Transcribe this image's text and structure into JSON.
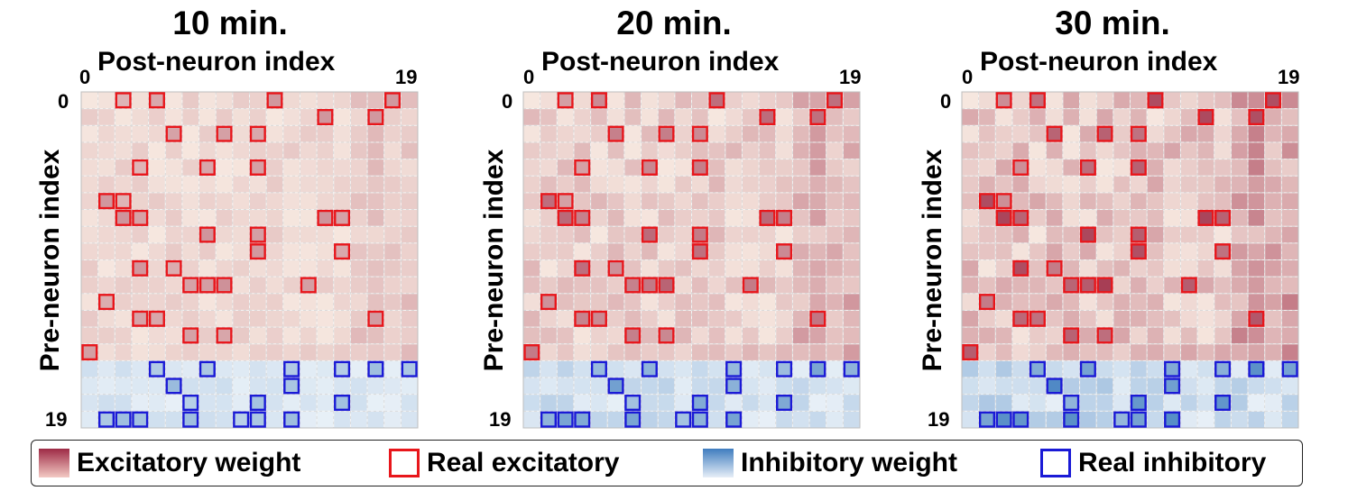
{
  "chart_data": [
    {
      "type": "heatmap",
      "title": "10 min.",
      "xlabel": "Post-neuron index",
      "ylabel": "Pre-neuron index",
      "x_ticks": [
        "0",
        "19"
      ],
      "y_ticks": [
        "0",
        "19"
      ],
      "n": 20,
      "excitatory_rows": 16,
      "scale": 0.45,
      "real_excitatory": [
        [
          0,
          2
        ],
        [
          0,
          4
        ],
        [
          0,
          11
        ],
        [
          0,
          18
        ],
        [
          1,
          14
        ],
        [
          1,
          17
        ],
        [
          2,
          5
        ],
        [
          2,
          8
        ],
        [
          2,
          10
        ],
        [
          4,
          3
        ],
        [
          4,
          7
        ],
        [
          4,
          10
        ],
        [
          6,
          1
        ],
        [
          6,
          2
        ],
        [
          7,
          2
        ],
        [
          7,
          3
        ],
        [
          7,
          14
        ],
        [
          7,
          15
        ],
        [
          8,
          7
        ],
        [
          8,
          10
        ],
        [
          9,
          10
        ],
        [
          9,
          15
        ],
        [
          10,
          3
        ],
        [
          10,
          5
        ],
        [
          11,
          6
        ],
        [
          11,
          7
        ],
        [
          11,
          8
        ],
        [
          11,
          13
        ],
        [
          12,
          1
        ],
        [
          13,
          3
        ],
        [
          13,
          4
        ],
        [
          13,
          17
        ],
        [
          14,
          6
        ],
        [
          14,
          8
        ],
        [
          15,
          0
        ]
      ],
      "real_inhibitory": [
        [
          16,
          4
        ],
        [
          16,
          7
        ],
        [
          16,
          12
        ],
        [
          16,
          15
        ],
        [
          16,
          17
        ],
        [
          16,
          19
        ],
        [
          17,
          5
        ],
        [
          17,
          12
        ],
        [
          18,
          6
        ],
        [
          18,
          10
        ],
        [
          18,
          15
        ],
        [
          19,
          1
        ],
        [
          19,
          2
        ],
        [
          19,
          3
        ],
        [
          19,
          6
        ],
        [
          19,
          9
        ],
        [
          19,
          10
        ],
        [
          19,
          12
        ]
      ]
    },
    {
      "type": "heatmap",
      "title": "20 min.",
      "xlabel": "Post-neuron index",
      "ylabel": "Pre-neuron index",
      "x_ticks": [
        "0",
        "19"
      ],
      "y_ticks": [
        "0",
        "19"
      ],
      "n": 20,
      "excitatory_rows": 16,
      "scale": 0.75,
      "real_excitatory": [
        [
          0,
          2
        ],
        [
          0,
          4
        ],
        [
          0,
          11
        ],
        [
          0,
          18
        ],
        [
          1,
          14
        ],
        [
          1,
          17
        ],
        [
          2,
          5
        ],
        [
          2,
          8
        ],
        [
          2,
          10
        ],
        [
          4,
          3
        ],
        [
          4,
          7
        ],
        [
          4,
          10
        ],
        [
          6,
          1
        ],
        [
          6,
          2
        ],
        [
          7,
          2
        ],
        [
          7,
          3
        ],
        [
          7,
          14
        ],
        [
          7,
          15
        ],
        [
          8,
          7
        ],
        [
          8,
          10
        ],
        [
          9,
          10
        ],
        [
          9,
          15
        ],
        [
          10,
          3
        ],
        [
          10,
          5
        ],
        [
          11,
          6
        ],
        [
          11,
          7
        ],
        [
          11,
          8
        ],
        [
          11,
          13
        ],
        [
          12,
          1
        ],
        [
          13,
          3
        ],
        [
          13,
          4
        ],
        [
          13,
          17
        ],
        [
          14,
          6
        ],
        [
          14,
          8
        ],
        [
          15,
          0
        ]
      ],
      "real_inhibitory": [
        [
          16,
          4
        ],
        [
          16,
          7
        ],
        [
          16,
          12
        ],
        [
          16,
          15
        ],
        [
          16,
          17
        ],
        [
          16,
          19
        ],
        [
          17,
          5
        ],
        [
          17,
          12
        ],
        [
          18,
          6
        ],
        [
          18,
          10
        ],
        [
          18,
          15
        ],
        [
          19,
          1
        ],
        [
          19,
          2
        ],
        [
          19,
          3
        ],
        [
          19,
          6
        ],
        [
          19,
          9
        ],
        [
          19,
          10
        ],
        [
          19,
          12
        ]
      ]
    },
    {
      "type": "heatmap",
      "title": "30 min.",
      "xlabel": "Post-neuron index",
      "ylabel": "Pre-neuron index",
      "x_ticks": [
        "0",
        "19"
      ],
      "y_ticks": [
        "0",
        "19"
      ],
      "n": 20,
      "excitatory_rows": 16,
      "scale": 1.0,
      "real_excitatory": [
        [
          0,
          2
        ],
        [
          0,
          4
        ],
        [
          0,
          11
        ],
        [
          0,
          18
        ],
        [
          1,
          14
        ],
        [
          1,
          17
        ],
        [
          2,
          5
        ],
        [
          2,
          8
        ],
        [
          2,
          10
        ],
        [
          4,
          3
        ],
        [
          4,
          7
        ],
        [
          4,
          10
        ],
        [
          6,
          1
        ],
        [
          6,
          2
        ],
        [
          7,
          2
        ],
        [
          7,
          3
        ],
        [
          7,
          14
        ],
        [
          7,
          15
        ],
        [
          8,
          7
        ],
        [
          8,
          10
        ],
        [
          9,
          10
        ],
        [
          9,
          15
        ],
        [
          10,
          3
        ],
        [
          10,
          5
        ],
        [
          11,
          6
        ],
        [
          11,
          7
        ],
        [
          11,
          8
        ],
        [
          11,
          13
        ],
        [
          12,
          1
        ],
        [
          13,
          3
        ],
        [
          13,
          4
        ],
        [
          13,
          17
        ],
        [
          14,
          6
        ],
        [
          14,
          8
        ],
        [
          15,
          0
        ]
      ],
      "real_inhibitory": [
        [
          16,
          4
        ],
        [
          16,
          7
        ],
        [
          16,
          12
        ],
        [
          16,
          15
        ],
        [
          16,
          17
        ],
        [
          16,
          19
        ],
        [
          17,
          5
        ],
        [
          17,
          12
        ],
        [
          18,
          6
        ],
        [
          18,
          10
        ],
        [
          18,
          15
        ],
        [
          19,
          1
        ],
        [
          19,
          2
        ],
        [
          19,
          3
        ],
        [
          19,
          6
        ],
        [
          19,
          9
        ],
        [
          19,
          10
        ],
        [
          19,
          12
        ]
      ]
    }
  ],
  "legend": {
    "excitatory_weight": "Excitatory weight",
    "real_excitatory": "Real excitatory",
    "inhibitory_weight": "Inhibitory weight",
    "real_inhibitory": "Real inhibitory"
  },
  "colors": {
    "excitatory_high": "#9e2a45",
    "excitatory_low": "#f6e7df",
    "inhibitory_high": "#3f7dbf",
    "inhibitory_low": "#e8f0f7",
    "real_excitatory_edge": "#e8161b",
    "real_inhibitory_edge": "#1a1ad6",
    "neutral": "#f4f4f4"
  }
}
